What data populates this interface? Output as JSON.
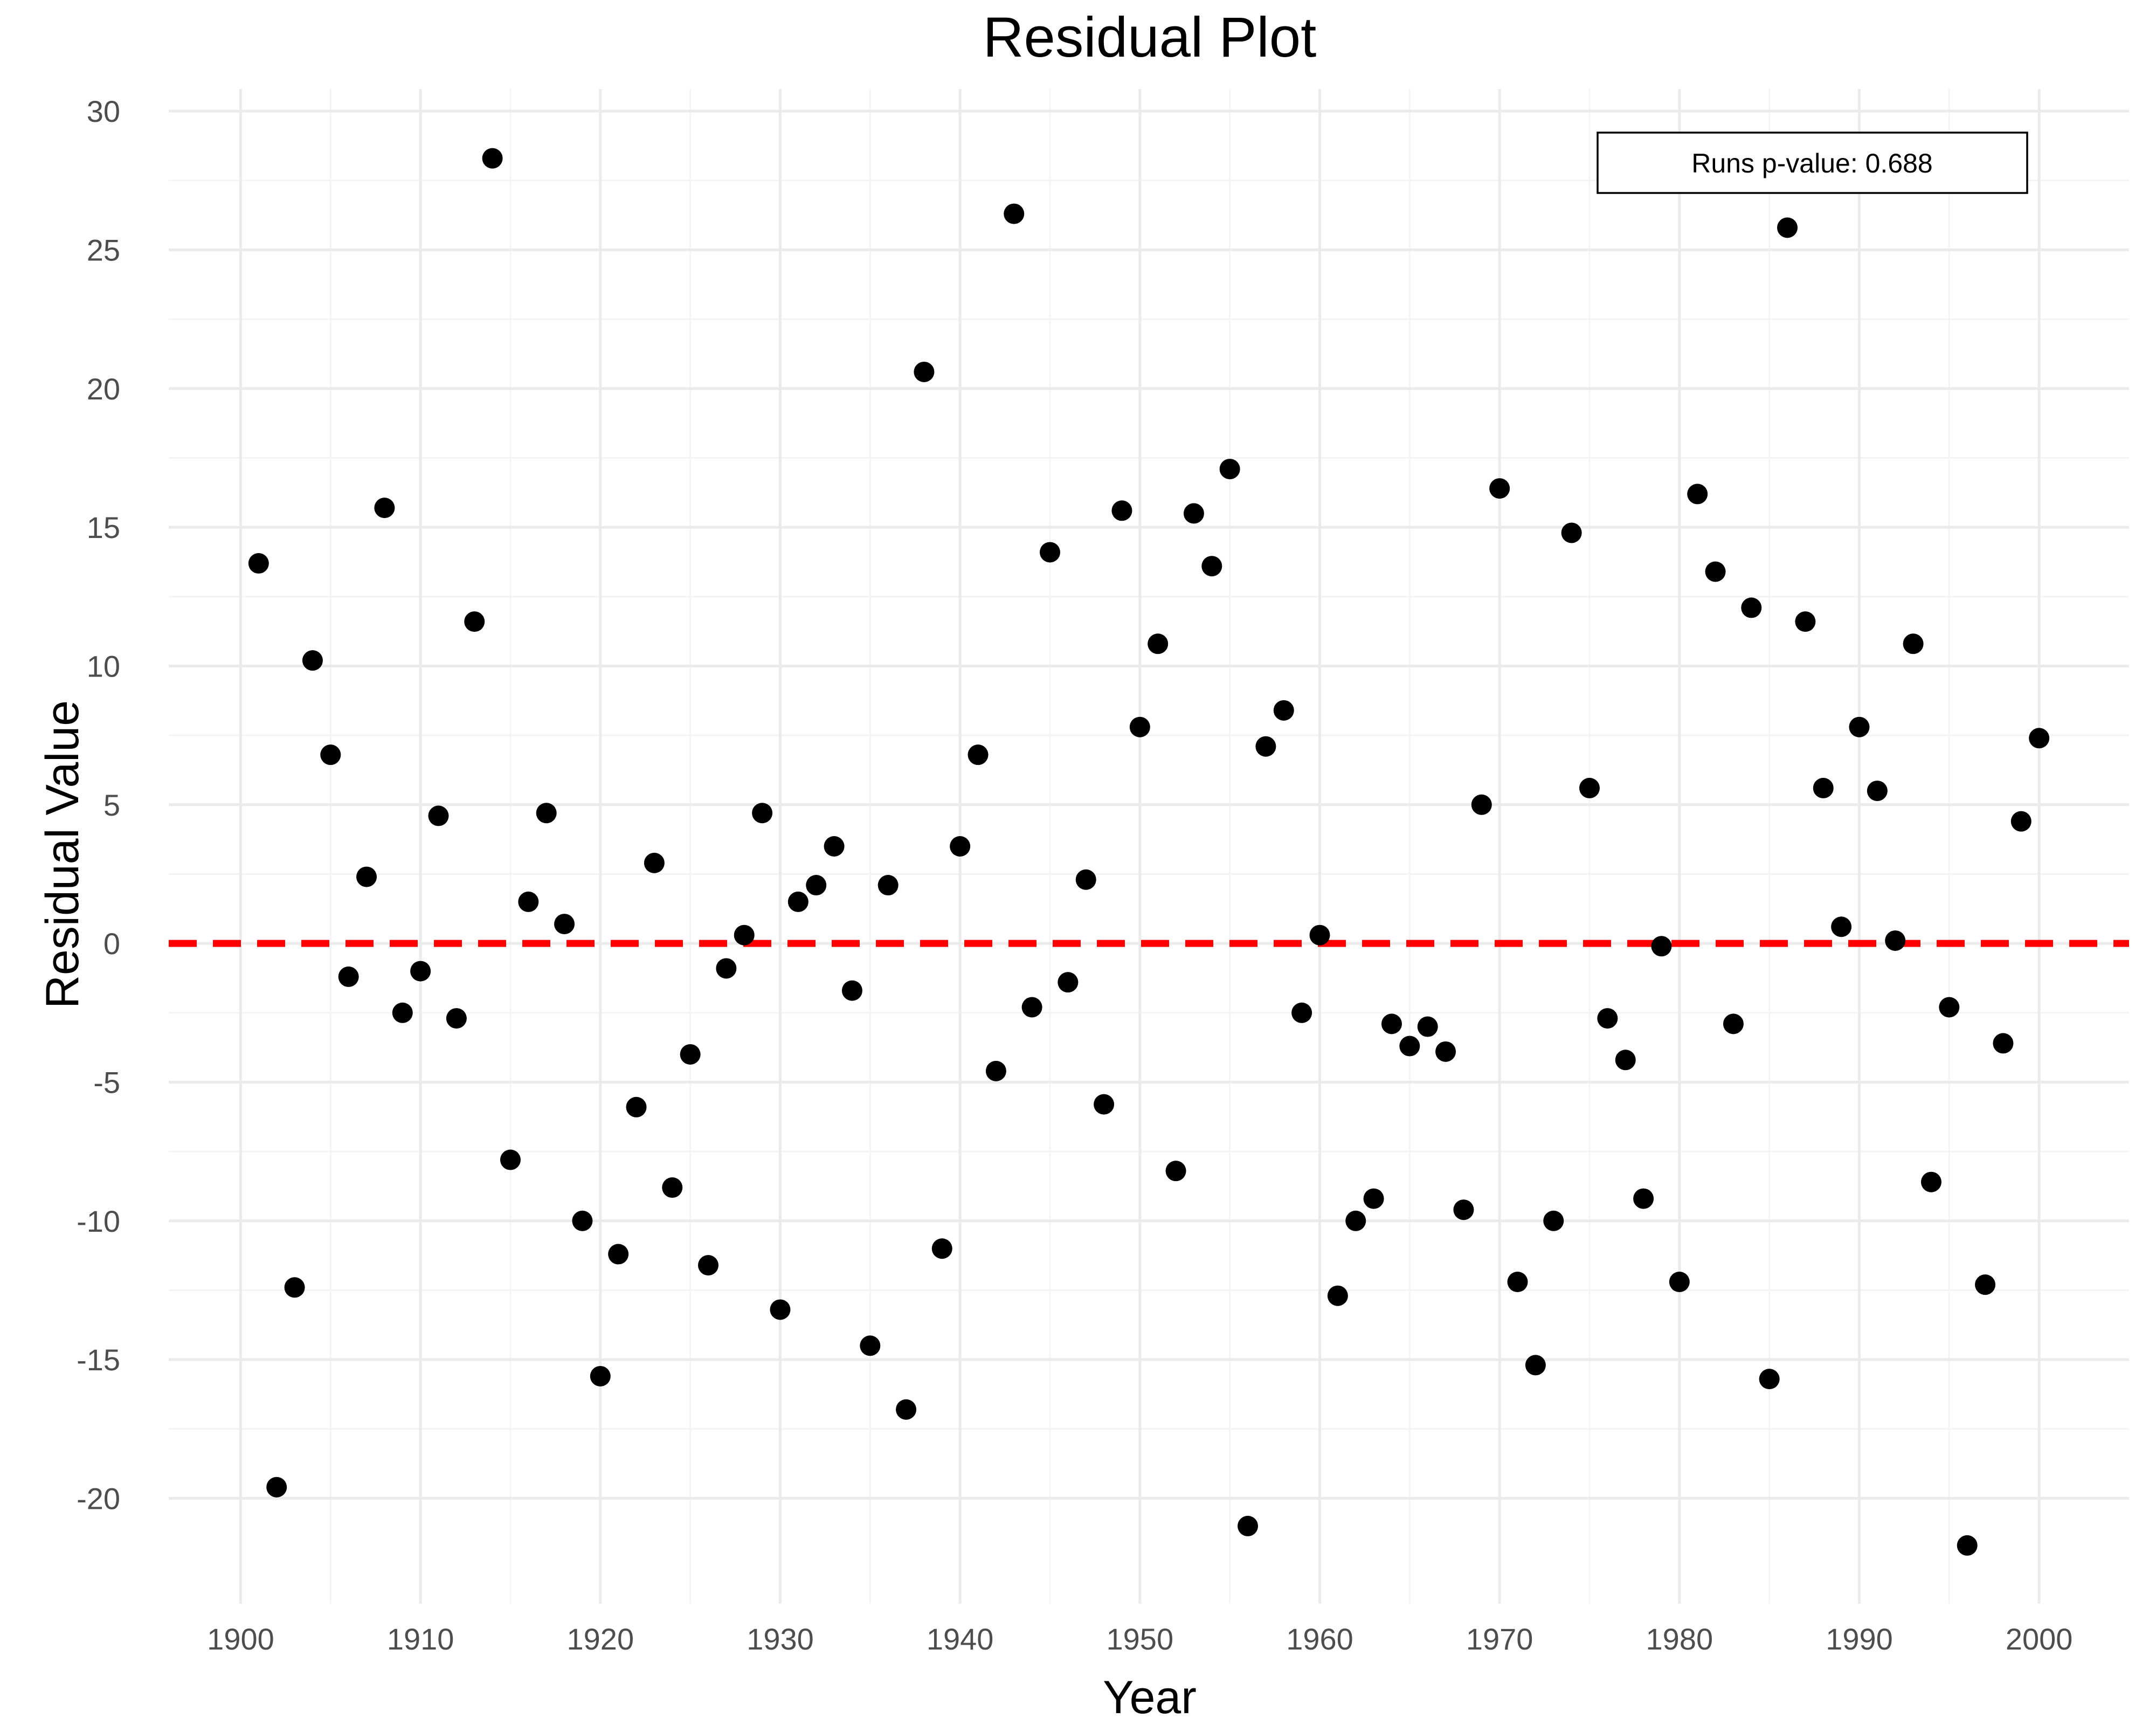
{
  "chart_data": {
    "type": "scatter",
    "title": "Residual Plot",
    "xlabel": "Year",
    "ylabel": "Residual Value",
    "xlim": [
      1896,
      2005
    ],
    "ylim": [
      -23.8,
      30.8
    ],
    "x_ticks": [
      1900,
      1910,
      1920,
      1930,
      1940,
      1950,
      1960,
      1970,
      1980,
      1990,
      2000
    ],
    "y_ticks": [
      -20,
      -15,
      -10,
      -5,
      0,
      5,
      10,
      15,
      20,
      25,
      30
    ],
    "grid": true,
    "reference_line": {
      "y": 0,
      "style": "dashed",
      "color": "#ff0000"
    },
    "annotation": {
      "text": "Runs p-value: 0.688",
      "position": "top-right",
      "boxed": true
    },
    "point_color": "#000000",
    "x": [
      1901,
      1902,
      1903,
      1904,
      1905,
      1906,
      1907,
      1908,
      1909,
      1910,
      1911,
      1912,
      1913,
      1914,
      1915,
      1916,
      1917,
      1918,
      1919,
      1920,
      1921,
      1922,
      1923,
      1924,
      1925,
      1926,
      1927,
      1928,
      1929,
      1930,
      1931,
      1932,
      1933,
      1934,
      1935,
      1936,
      1937,
      1938,
      1939,
      1940,
      1941,
      1942,
      1943,
      1944,
      1945,
      1946,
      1947,
      1948,
      1949,
      1950,
      1951,
      1952,
      1953,
      1954,
      1955,
      1956,
      1957,
      1958,
      1959,
      1960,
      1961,
      1962,
      1963,
      1964,
      1965,
      1966,
      1967,
      1968,
      1969,
      1970,
      1971,
      1972,
      1973,
      1974,
      1975,
      1976,
      1977,
      1978,
      1979,
      1980,
      1981,
      1982,
      1983,
      1984,
      1985,
      1986,
      1987,
      1988,
      1989,
      1990,
      1991,
      1992,
      1993,
      1994,
      1995,
      1996,
      1997,
      1998,
      1999,
      2000
    ],
    "y": [
      13.7,
      -19.6,
      -12.4,
      10.2,
      6.8,
      -1.2,
      2.4,
      15.7,
      -2.5,
      -1.0,
      4.6,
      -2.7,
      11.6,
      28.3,
      -7.8,
      1.5,
      4.7,
      0.7,
      -10.0,
      -15.6,
      -11.2,
      -5.9,
      2.9,
      -8.8,
      -4.0,
      -11.6,
      -0.9,
      0.3,
      4.7,
      -13.2,
      1.5,
      2.1,
      3.5,
      -1.7,
      -14.5,
      2.1,
      -16.8,
      20.6,
      -11.0,
      3.5,
      6.8,
      -4.6,
      26.3,
      -2.3,
      14.1,
      -1.4,
      2.3,
      -5.8,
      15.6,
      7.8,
      10.8,
      -8.2,
      15.5,
      13.6,
      17.1,
      -21.0,
      7.1,
      8.4,
      -2.5,
      0.3,
      -12.7,
      -10.0,
      -9.2,
      -2.9,
      -3.7,
      -3.0,
      -3.9,
      -9.6,
      5.0,
      16.4,
      -12.2,
      -15.2,
      -10.0,
      14.8,
      5.6,
      -2.7,
      -4.2,
      -9.2,
      -0.1,
      -12.2,
      16.2,
      13.4,
      -2.9,
      12.1,
      -15.7,
      25.8,
      11.6,
      5.6,
      0.6,
      7.8,
      5.5,
      0.1,
      10.8,
      -8.6,
      -2.3,
      -21.7,
      -12.3,
      -3.6,
      4.4,
      7.4
    ]
  }
}
